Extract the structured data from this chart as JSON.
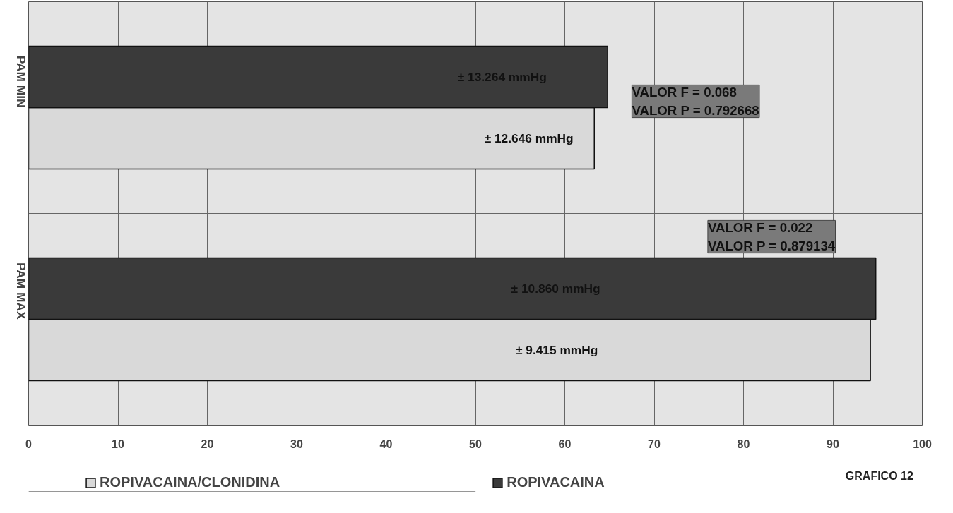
{
  "chart_data": {
    "type": "bar",
    "orientation": "horizontal",
    "categories": [
      "PAM MIN",
      "PAM MAX"
    ],
    "series": [
      {
        "name": "ROPIVACAINA/CLONIDINA",
        "color": "#d9d9d9",
        "values": [
          63.3,
          94.2
        ]
      },
      {
        "name": "ROPIVACAINA",
        "color": "#3a3a3a",
        "values": [
          64.8,
          94.8
        ]
      }
    ],
    "xlim": [
      0,
      100
    ],
    "xticks": [
      0,
      10,
      20,
      30,
      40,
      50,
      60,
      70,
      80,
      90,
      100
    ],
    "grid": true,
    "legend": "bottom",
    "annotations": [
      "± 13.264 mmHg",
      "± 12.646 mmHg",
      "VALOR F = 0.068\nVALOR P = 0.792668",
      "± 10.860 mmHg",
      "± 9.415 mmHg",
      "VALOR F = 0.022\nVALOR P = 0.879134",
      "GRAFICO 12"
    ]
  }
}
